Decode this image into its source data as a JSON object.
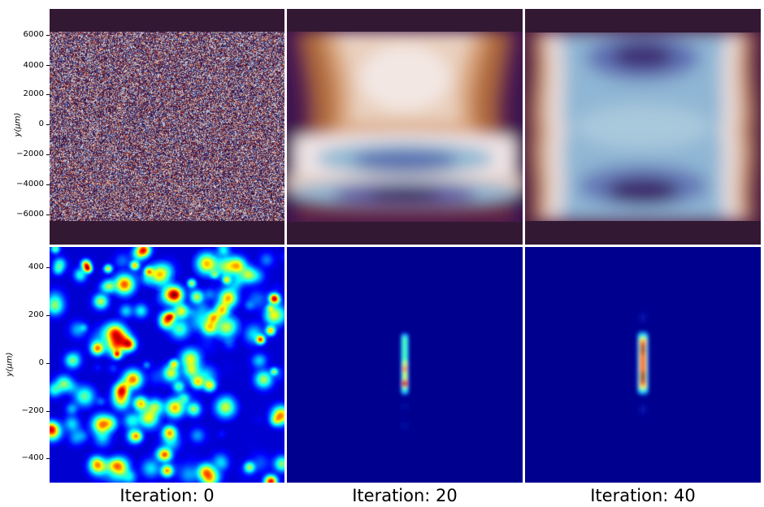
{
  "figure": {
    "top_axis": {
      "ylabel": "y(μm)",
      "yticks": [
        "6000",
        "4000",
        "2000",
        "0",
        "−2000",
        "−4000",
        "−6000"
      ]
    },
    "bottom_axis": {
      "ylabel": "y(μm)",
      "yticks": [
        "400",
        "200",
        "0",
        "−200",
        "−400"
      ]
    },
    "captions": [
      "Iteration: 0",
      "Iteration: 20",
      "Iteration: 40"
    ],
    "colors": {
      "phase_band": "#331833",
      "phase_dark": "#3a1248",
      "phase_light": "#efe4e6",
      "jet_background": "#00008f"
    }
  }
}
